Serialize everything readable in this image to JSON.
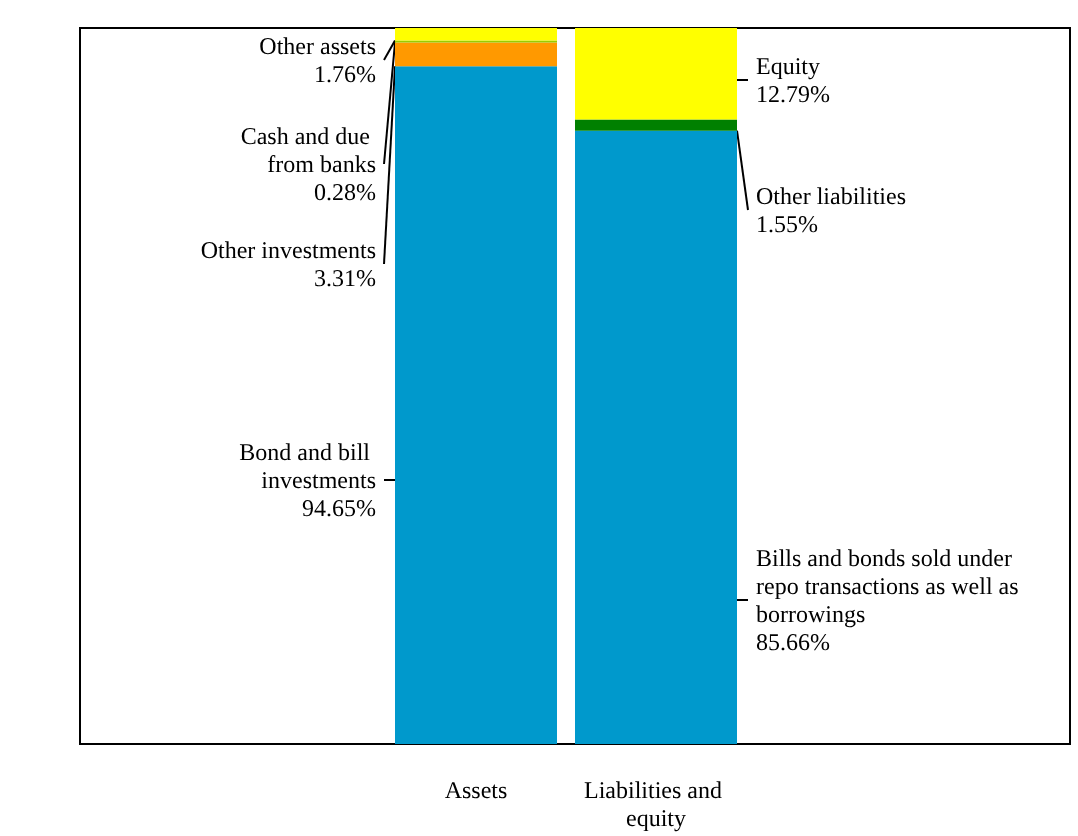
{
  "chart_data": {
    "type": "bar",
    "stacked": true,
    "categories": [
      "Assets",
      "Liabilities and equity"
    ],
    "series": [
      {
        "name": "Bond and bill investments",
        "color": "#0099cc",
        "values": [
          94.65,
          null
        ],
        "value_labels": [
          "94.65%",
          null
        ]
      },
      {
        "name": "Other investments",
        "color": "#ff9900",
        "values": [
          3.31,
          null
        ],
        "value_labels": [
          "3.31%",
          null
        ]
      },
      {
        "name": "Cash and due from banks",
        "color": "#99cc00",
        "values": [
          0.28,
          null
        ],
        "value_labels": [
          "0.28%",
          null
        ]
      },
      {
        "name": "Other assets",
        "color": "#ffff00",
        "values": [
          1.76,
          null
        ],
        "value_labels": [
          "1.76%",
          null
        ]
      },
      {
        "name": "Bills and bonds sold under repo transactions as well as borrowings",
        "color": "#0099cc",
        "values": [
          null,
          85.66
        ],
        "value_labels": [
          null,
          "85.66%"
        ]
      },
      {
        "name": "Other liabilities",
        "color": "#008000",
        "values": [
          null,
          1.55
        ],
        "value_labels": [
          null,
          "1.55%"
        ]
      },
      {
        "name": "Equity",
        "color": "#ffff00",
        "values": [
          null,
          12.79
        ],
        "value_labels": [
          null,
          "12.79%"
        ]
      }
    ],
    "legend": false
  }
}
